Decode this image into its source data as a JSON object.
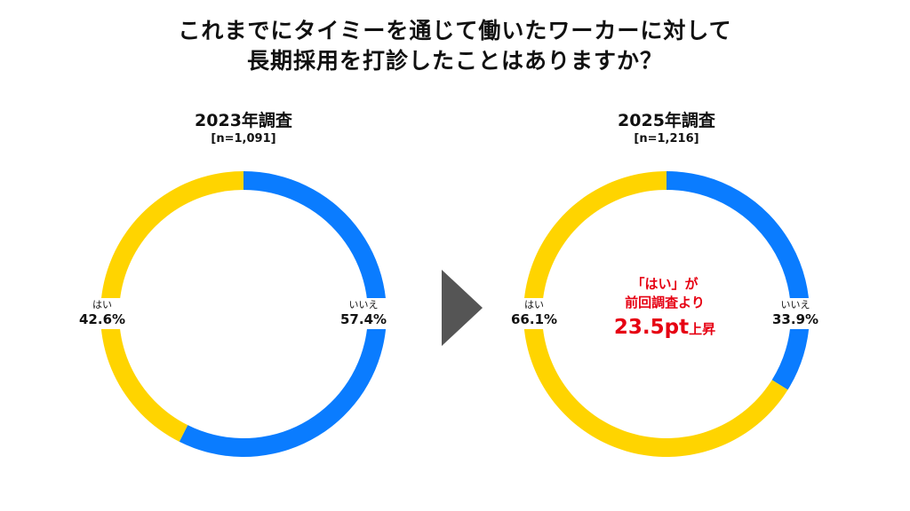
{
  "title": {
    "line1": "これまでにタイミーを通じて働いたワーカーに対して",
    "line2": "長期採用を打診したことはありますか？"
  },
  "colors": {
    "yes": "#ffd400",
    "no": "#0a7cff",
    "arrow": "#555555",
    "highlight": "#e60012"
  },
  "chart_data": [
    {
      "type": "pie",
      "style": "donut",
      "title": "2023年調査",
      "sample": "[n=1,091]",
      "categories": [
        "いいえ",
        "はい"
      ],
      "values": [
        57.4,
        42.6
      ],
      "value_labels": [
        "57.4%",
        "42.6%"
      ],
      "legend": "none"
    },
    {
      "type": "pie",
      "style": "donut",
      "title": "2025年調査",
      "sample": "[n=1,216]",
      "categories": [
        "いいえ",
        "はい"
      ],
      "values": [
        33.9,
        66.1
      ],
      "value_labels": [
        "33.9%",
        "66.1%"
      ],
      "legend": "none",
      "annotation": {
        "line1": "「はい」が",
        "line2": "前回調査より",
        "change": "23.5pt",
        "suffix": "上昇"
      }
    }
  ]
}
